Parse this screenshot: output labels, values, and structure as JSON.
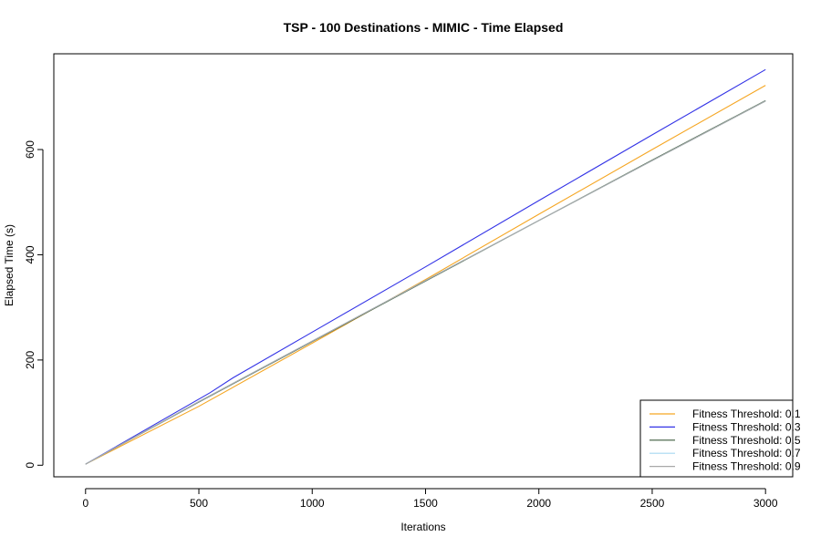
{
  "chart_data": {
    "type": "line",
    "title": "TSP - 100 Destinations - MIMIC - Time Elapsed",
    "xlabel": "Iterations",
    "ylabel": "Elapsed Time (s)",
    "xlim": [
      -140,
      3120
    ],
    "ylim": [
      -22,
      782
    ],
    "x_ticks": [
      0,
      500,
      1000,
      1500,
      2000,
      2500,
      3000
    ],
    "y_ticks": [
      0,
      200,
      400,
      600
    ],
    "grid": false,
    "legend_position": "bottom-right",
    "series": [
      {
        "name": "Fitness Threshold: 0.1",
        "color": "#f5a623",
        "x": [
          0,
          500,
          1000,
          1500,
          2000,
          2500,
          3000
        ],
        "y": [
          2,
          112,
          232,
          353,
          477,
          600,
          722
        ]
      },
      {
        "name": "Fitness Threshold: 0.3",
        "color": "#3333e6",
        "x": [
          0,
          550,
          650,
          1000,
          1500,
          2000,
          2500,
          3000
        ],
        "y": [
          2,
          138,
          166,
          253,
          377,
          503,
          628,
          752
        ]
      },
      {
        "name": "Fitness Threshold: 0.5",
        "color": "#3d5c3d",
        "x": [
          0,
          500,
          1000,
          1500,
          2000,
          2500,
          3000
        ],
        "y": [
          2,
          120,
          235,
          350,
          465,
          580,
          693
        ]
      },
      {
        "name": "Fitness Threshold: 0.7",
        "color": "#a6d9f0",
        "x": [
          0,
          500,
          1000,
          1500,
          2000,
          2500,
          3000
        ],
        "y": [
          2,
          121,
          236,
          351,
          465,
          579,
          692
        ]
      },
      {
        "name": "Fitness Threshold: 0.9",
        "color": "#a8a8a8",
        "x": [
          0,
          500,
          1000,
          1500,
          2000,
          2500,
          3000
        ],
        "y": [
          2,
          121,
          236,
          351,
          465,
          579,
          692
        ]
      }
    ]
  }
}
